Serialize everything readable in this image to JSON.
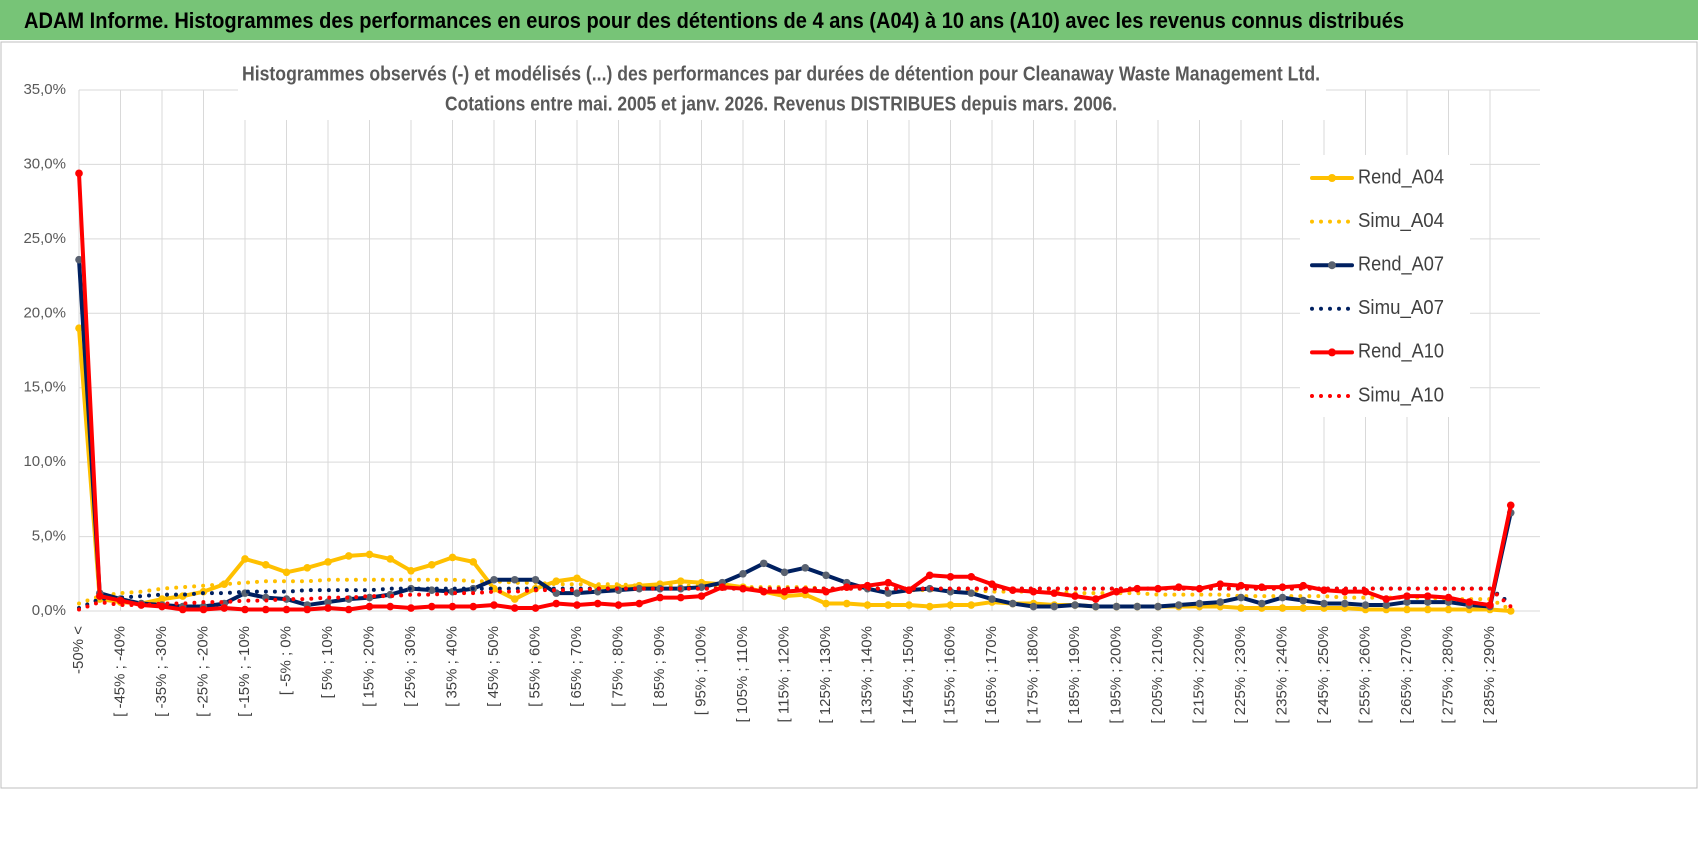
{
  "page_title": "ADAM Informe. Histogrammes des performances en euros pour des détentions de 4 ans (A04) à 10 ans (A10) avec les revenus connus distribués",
  "chart_data": {
    "type": "line",
    "title": "Histogrammes observés (-) et modélisés (...) des performances par durées de détention pour Cleanaway Waste Management Ltd.",
    "subtitle": "Cotations entre mai. 2005 et janv. 2026.  Revenus DISTRIBUES depuis mars. 2006.",
    "categories": [
      "-50% <",
      null,
      "[ -45% ; -40%",
      null,
      "[ -35% ; -30%",
      null,
      "[ -25% ; -20%",
      null,
      "[ -15% ; -10%",
      null,
      "[ -5% ; 0%",
      null,
      "[ 5% ; 10%",
      null,
      "[ 15% ; 20%",
      null,
      "[ 25% ; 30%",
      null,
      "[ 35% ; 40%",
      null,
      "[ 45% ; 50%",
      null,
      "[ 55% ; 60%",
      null,
      "[ 65% ; 70%",
      null,
      "[ 75% ; 80%",
      null,
      "[ 85% ; 90%",
      null,
      "[ 95% ; 100%",
      null,
      "[ 105% ; 110%",
      null,
      "[ 115% ; 120%",
      null,
      "[ 125% ; 130%",
      null,
      "[ 135% ; 140%",
      null,
      "[ 145% ; 150%",
      null,
      "[ 155% ; 160%",
      null,
      "[ 165% ; 170%",
      null,
      "[ 175% ; 180%",
      null,
      "[ 185% ; 190%",
      null,
      "[ 195% ; 200%",
      null,
      "[ 205% ; 210%",
      null,
      "[ 215% ; 220%",
      null,
      "[ 225% ; 230%",
      null,
      "[ 235% ; 240%",
      null,
      "[ 245% ; 250%",
      null,
      "[ 255% ; 260%",
      null,
      "[ 265% ; 270%",
      null,
      "[ 275% ; 280%",
      null,
      "[ 285% ; 290%",
      null
    ],
    "series": [
      {
        "name": "Rend_A04",
        "color": "#ffc000",
        "marker_color": "#ffc000",
        "style": "solid",
        "values": [
          19.0,
          0.8,
          0.6,
          0.5,
          0.8,
          1.0,
          1.3,
          1.8,
          3.5,
          3.1,
          2.6,
          2.9,
          3.3,
          3.7,
          3.8,
          3.5,
          2.7,
          3.1,
          3.6,
          3.3,
          1.5,
          0.8,
          1.5,
          2.0,
          2.2,
          1.6,
          1.6,
          1.7,
          1.8,
          2.0,
          1.9,
          1.8,
          1.6,
          1.3,
          1.0,
          1.1,
          0.5,
          0.5,
          0.4,
          0.4,
          0.4,
          0.3,
          0.4,
          0.4,
          0.6,
          0.5,
          0.5,
          0.4,
          0.4,
          0.3,
          0.3,
          0.3,
          0.3,
          0.3,
          0.3,
          0.3,
          0.2,
          0.2,
          0.2,
          0.2,
          0.2,
          0.2,
          0.1,
          0.1,
          0.1,
          0.1,
          0.1,
          0.1,
          0.1,
          0.0
        ]
      },
      {
        "name": "Simu_A04",
        "color": "#ffc000",
        "style": "dotted",
        "values": [
          0.5,
          1.0,
          1.2,
          1.3,
          1.5,
          1.6,
          1.7,
          1.8,
          1.9,
          2.0,
          2.0,
          2.0,
          2.1,
          2.1,
          2.1,
          2.1,
          2.1,
          2.1,
          2.1,
          2.0,
          2.0,
          1.9,
          1.9,
          1.8,
          1.8,
          1.8,
          1.8,
          1.7,
          1.7,
          1.7,
          1.7,
          1.7,
          1.6,
          1.6,
          1.6,
          1.6,
          1.5,
          1.5,
          1.5,
          1.5,
          1.4,
          1.4,
          1.4,
          1.4,
          1.3,
          1.3,
          1.3,
          1.3,
          1.2,
          1.2,
          1.2,
          1.2,
          1.1,
          1.1,
          1.1,
          1.1,
          1.0,
          1.0,
          1.0,
          1.0,
          1.0,
          0.9,
          0.9,
          0.9,
          0.9,
          0.9,
          0.8,
          0.8,
          0.8,
          0.1
        ]
      },
      {
        "name": "Rend_A07",
        "color": "#002060",
        "marker_color": "#5a6270",
        "style": "solid",
        "values": [
          23.6,
          1.2,
          0.8,
          0.5,
          0.4,
          0.3,
          0.3,
          0.5,
          1.2,
          0.9,
          0.8,
          0.4,
          0.6,
          0.8,
          0.9,
          1.1,
          1.5,
          1.4,
          1.3,
          1.5,
          2.1,
          2.1,
          2.1,
          1.2,
          1.2,
          1.3,
          1.4,
          1.5,
          1.5,
          1.5,
          1.6,
          1.9,
          2.5,
          3.2,
          2.6,
          2.9,
          2.4,
          1.9,
          1.5,
          1.2,
          1.4,
          1.5,
          1.3,
          1.2,
          0.8,
          0.5,
          0.3,
          0.3,
          0.4,
          0.3,
          0.3,
          0.3,
          0.3,
          0.4,
          0.5,
          0.6,
          0.9,
          0.5,
          0.9,
          0.7,
          0.5,
          0.5,
          0.4,
          0.4,
          0.6,
          0.6,
          0.6,
          0.4,
          0.3,
          6.6
        ]
      },
      {
        "name": "Simu_A07",
        "color": "#002060",
        "style": "dotted",
        "values": [
          0.2,
          0.8,
          0.9,
          1.0,
          1.1,
          1.1,
          1.2,
          1.2,
          1.3,
          1.3,
          1.3,
          1.4,
          1.4,
          1.4,
          1.4,
          1.5,
          1.5,
          1.5,
          1.5,
          1.5,
          1.5,
          1.5,
          1.5,
          1.5,
          1.5,
          1.5,
          1.5,
          1.5,
          1.5,
          1.5,
          1.5,
          1.5,
          1.5,
          1.5,
          1.5,
          1.5,
          1.5,
          1.5,
          1.5,
          1.5,
          1.5,
          1.5,
          1.5,
          1.5,
          1.5,
          1.5,
          1.5,
          1.5,
          1.5,
          1.5,
          1.5,
          1.5,
          1.5,
          1.5,
          1.5,
          1.5,
          1.5,
          1.5,
          1.5,
          1.5,
          1.5,
          1.5,
          1.5,
          1.5,
          1.5,
          1.5,
          1.5,
          1.5,
          1.5,
          0.5
        ]
      },
      {
        "name": "Rend_A10",
        "color": "#ff0000",
        "marker_color": "#ff0000",
        "style": "solid",
        "values": [
          29.4,
          1.0,
          0.7,
          0.4,
          0.3,
          0.1,
          0.1,
          0.2,
          0.1,
          0.1,
          0.1,
          0.1,
          0.2,
          0.1,
          0.3,
          0.3,
          0.2,
          0.3,
          0.3,
          0.3,
          0.4,
          0.2,
          0.2,
          0.5,
          0.4,
          0.5,
          0.4,
          0.5,
          0.9,
          0.9,
          1.0,
          1.6,
          1.5,
          1.3,
          1.3,
          1.4,
          1.3,
          1.6,
          1.7,
          1.9,
          1.4,
          2.4,
          2.3,
          2.3,
          1.8,
          1.4,
          1.3,
          1.2,
          1.0,
          0.8,
          1.3,
          1.5,
          1.5,
          1.6,
          1.5,
          1.8,
          1.7,
          1.6,
          1.6,
          1.7,
          1.4,
          1.3,
          1.3,
          0.8,
          1.0,
          1.0,
          0.9,
          0.6,
          0.4,
          7.1
        ]
      },
      {
        "name": "Simu_A10",
        "color": "#ff0000",
        "style": "dotted",
        "values": [
          0.1,
          0.6,
          0.4,
          0.4,
          0.5,
          0.5,
          0.6,
          0.6,
          0.7,
          0.7,
          0.8,
          0.8,
          0.9,
          0.9,
          1.0,
          1.0,
          1.1,
          1.1,
          1.2,
          1.2,
          1.3,
          1.3,
          1.4,
          1.4,
          1.4,
          1.5,
          1.5,
          1.5,
          1.5,
          1.5,
          1.5,
          1.5,
          1.5,
          1.5,
          1.5,
          1.5,
          1.5,
          1.5,
          1.5,
          1.5,
          1.5,
          1.5,
          1.5,
          1.5,
          1.5,
          1.5,
          1.5,
          1.5,
          1.5,
          1.5,
          1.5,
          1.5,
          1.5,
          1.5,
          1.5,
          1.5,
          1.5,
          1.5,
          1.5,
          1.5,
          1.5,
          1.5,
          1.5,
          1.5,
          1.5,
          1.5,
          1.5,
          1.5,
          1.5,
          0.3
        ]
      }
    ],
    "ylim": [
      0,
      35
    ],
    "yticks": [
      {
        "value": 0,
        "label": "0,0%"
      },
      {
        "value": 5,
        "label": "5,0%"
      },
      {
        "value": 10,
        "label": "10,0%"
      },
      {
        "value": 15,
        "label": "15,0%"
      },
      {
        "value": 20,
        "label": "20,0%"
      },
      {
        "value": 25,
        "label": "25,0%"
      },
      {
        "value": 30,
        "label": "30,0%"
      },
      {
        "value": 35,
        "label": "35,0%"
      }
    ],
    "grid": true,
    "legend": "right"
  }
}
